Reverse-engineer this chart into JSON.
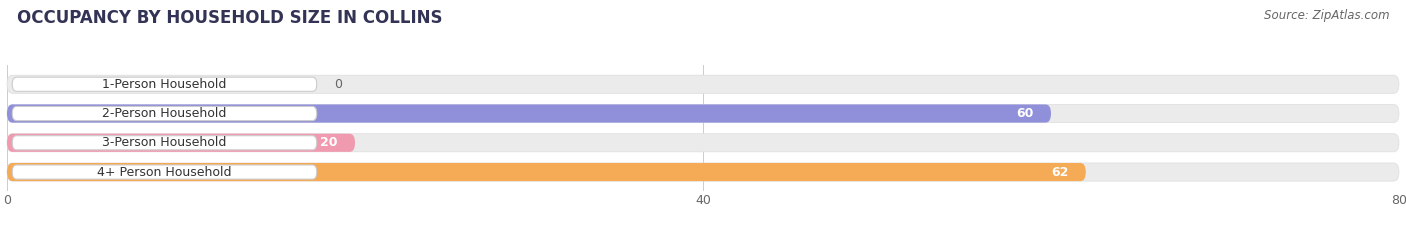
{
  "title": "OCCUPANCY BY HOUSEHOLD SIZE IN COLLINS",
  "source_text": "Source: ZipAtlas.com",
  "categories": [
    "1-Person Household",
    "2-Person Household",
    "3-Person Household",
    "4+ Person Household"
  ],
  "values": [
    0,
    60,
    20,
    62
  ],
  "bar_colors": [
    "#68d0c8",
    "#8f8fda",
    "#f09ab0",
    "#f5aa55"
  ],
  "xlim": [
    0,
    80
  ],
  "xticks": [
    0,
    40,
    80
  ],
  "background_color": "#ffffff",
  "bar_bg_color": "#ebebeb",
  "bar_height": 0.62,
  "title_fontsize": 12,
  "source_fontsize": 8.5,
  "label_fontsize": 9,
  "value_fontsize": 9
}
